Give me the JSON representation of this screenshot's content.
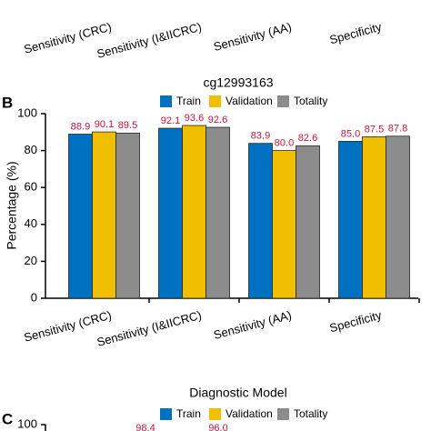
{
  "chart_data": [
    {
      "type": "bar",
      "categories": [
        "Sensitivity (CRC)",
        "Sensitivity (I&IICRC)",
        "Sensitivity (AA)",
        "Specificity"
      ]
    },
    {
      "type": "bar",
      "panel": "B",
      "title": "cg12993163",
      "ylabel": "Percentage (%)",
      "categories": [
        "Sensitivity (CRC)",
        "Sensitivity (I&IICRC)",
        "Sensitivity (AA)",
        "Specificity"
      ],
      "series": [
        {
          "name": "Train",
          "color": "#0070c0",
          "values": [
            88.9,
            92.1,
            83.9,
            85.0
          ],
          "value_labels": [
            "88.9",
            "92.1",
            "83.9",
            "85.0"
          ]
        },
        {
          "name": "Validation",
          "color": "#f0c000",
          "values": [
            90.1,
            93.6,
            80.0,
            87.5
          ],
          "value_labels": [
            "90.1",
            "93.6",
            "80.0",
            "87.5"
          ]
        },
        {
          "name": "Totality",
          "color": "#8c8c8c",
          "values": [
            89.5,
            92.6,
            82.6,
            87.8
          ],
          "value_labels": [
            "89.5",
            "92.6",
            "82.6",
            "87.8"
          ]
        }
      ],
      "ylim": [
        0,
        100
      ],
      "yticks": [
        0,
        20,
        40,
        60,
        80,
        100
      ]
    },
    {
      "type": "bar",
      "panel": "C",
      "title": "Diagnostic Model",
      "series": [
        {
          "name": "Train",
          "color": "#0070c0"
        },
        {
          "name": "Validation",
          "color": "#f0c000"
        },
        {
          "name": "Totality",
          "color": "#8c8c8c"
        }
      ],
      "yticks": [
        100
      ],
      "annotations": [
        "98.4",
        "96.0"
      ]
    }
  ]
}
